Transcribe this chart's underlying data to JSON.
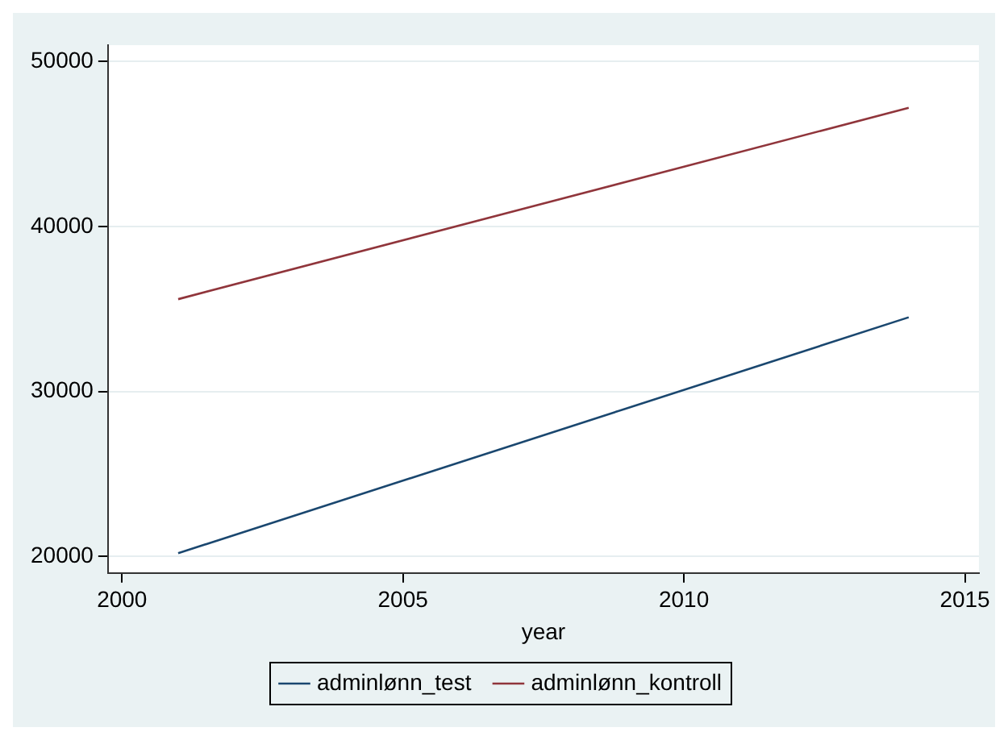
{
  "chart_data": {
    "type": "line",
    "xlabel": "year",
    "x": [
      2001,
      2014
    ],
    "series": [
      {
        "name": "adminlønn_test",
        "color": "#1a476f",
        "values": [
          20200,
          34500
        ]
      },
      {
        "name": "adminlønn_kontroll",
        "color": "#90353b",
        "values": [
          35600,
          47200
        ]
      }
    ],
    "xlim": [
      1999.75,
      2015.25
    ],
    "xticks": [
      2000,
      2005,
      2010,
      2015
    ],
    "ylim": [
      19000,
      51000
    ],
    "yticks": [
      20000,
      30000,
      40000,
      50000
    ],
    "grid": "y",
    "legend": "bottom",
    "marker": "none",
    "line_style": "solid"
  }
}
